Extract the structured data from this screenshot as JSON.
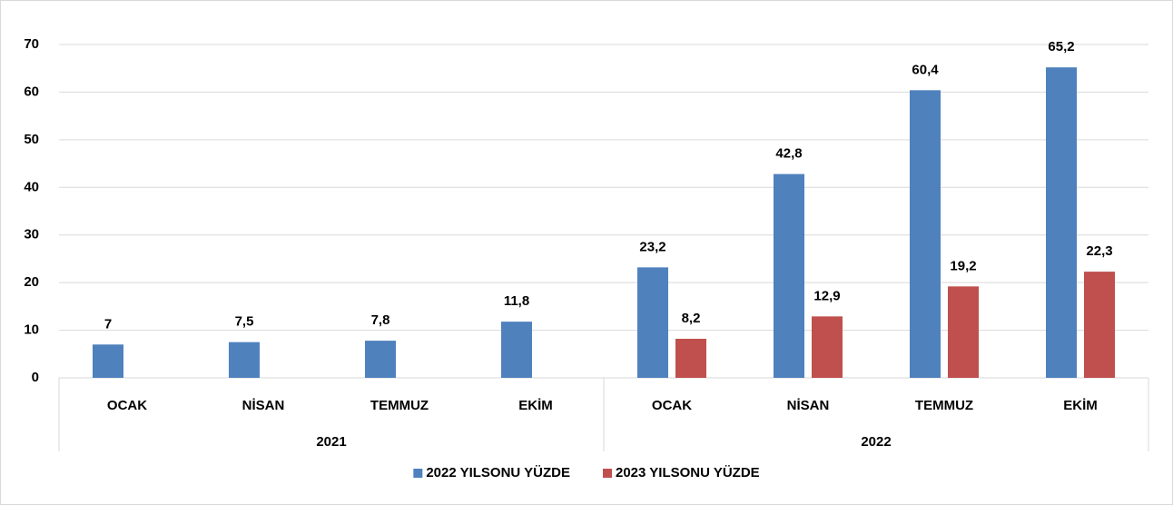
{
  "chart_data": {
    "type": "bar",
    "groups": [
      {
        "name": "2021",
        "categories": [
          "OCAK",
          "NİSAN",
          "TEMMUZ",
          "EKİM"
        ]
      },
      {
        "name": "2022",
        "categories": [
          "OCAK",
          "NİSAN",
          "TEMMUZ",
          "EKİM"
        ]
      }
    ],
    "series": [
      {
        "name": "2022 YILSONU YÜZDE",
        "color": "#4f81bd",
        "values": [
          7,
          7.5,
          7.8,
          11.8,
          23.2,
          42.8,
          60.4,
          65.2
        ],
        "value_labels": [
          "7",
          "7,5",
          "7,8",
          "11,8",
          "23,2",
          "42,8",
          "60,4",
          "65,2"
        ]
      },
      {
        "name": "2023 YILSONU YÜZDE",
        "color": "#c0504d",
        "values": [
          null,
          null,
          null,
          null,
          8.2,
          12.9,
          19.2,
          22.3
        ],
        "value_labels": [
          null,
          null,
          null,
          null,
          "8,2",
          "12,9",
          "19,2",
          "22,3"
        ]
      }
    ],
    "ylim": [
      0,
      70
    ],
    "yticks": [
      0,
      10,
      20,
      30,
      40,
      50,
      60,
      70
    ],
    "grid": true,
    "legend": "bottom"
  }
}
